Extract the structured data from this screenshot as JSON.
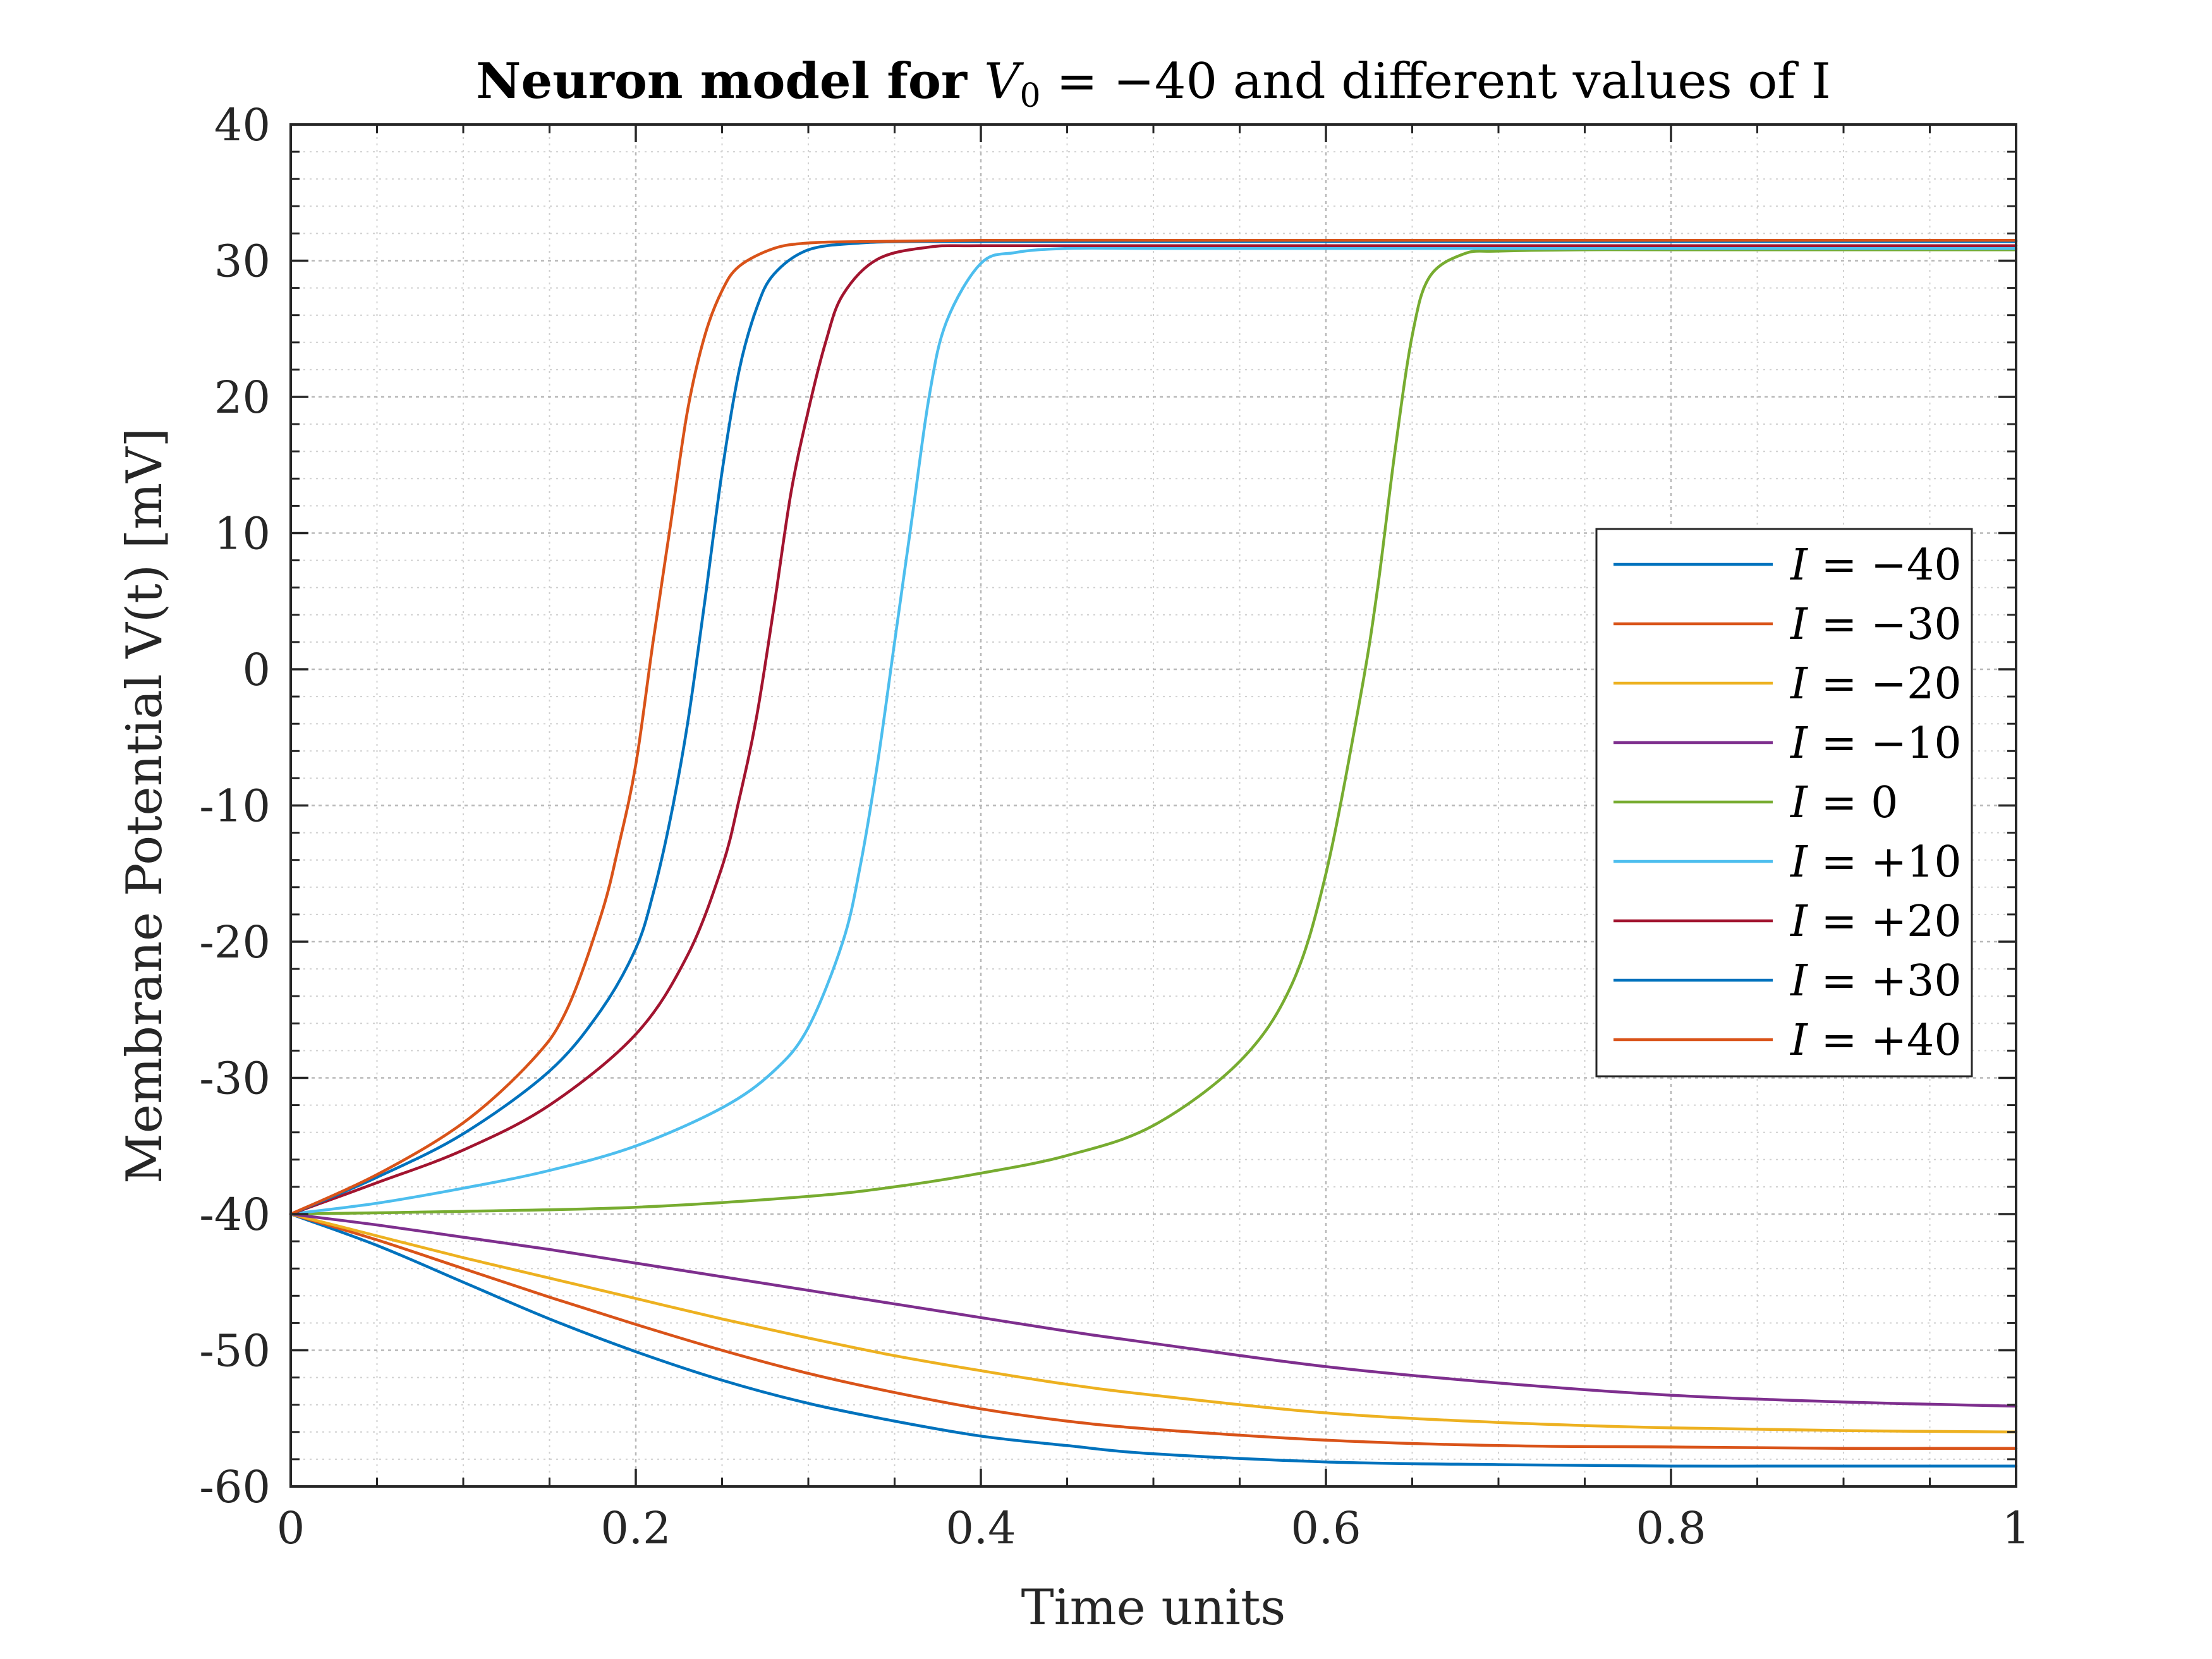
{
  "chart_data": {
    "type": "line",
    "title": "Neuron model for V0 = −40 and different values of I",
    "title_parts": {
      "before": "Neuron model for ",
      "symbol": "V",
      "subscript": "0",
      "after": " = −40 and different values of I"
    },
    "xlabel": "Time units",
    "ylabel": "Membrane Potential V(t) [mV]",
    "xlim": [
      0,
      1
    ],
    "ylim": [
      -60,
      40
    ],
    "x_ticks": [
      "0",
      "0.2",
      "0.4",
      "0.6",
      "0.8",
      "1"
    ],
    "x_tick_values": [
      0,
      0.2,
      0.4,
      0.6,
      0.8,
      1
    ],
    "y_ticks": [
      "40",
      "30",
      "20",
      "10",
      "0",
      "-10",
      "-20",
      "-30",
      "-40",
      "-50",
      "-60"
    ],
    "y_tick_values": [
      40,
      30,
      20,
      10,
      0,
      -10,
      -20,
      -30,
      -40,
      -50,
      -60
    ],
    "grid": true,
    "minor_grid": true,
    "legend_position": "right",
    "series": [
      {
        "name": "I = −40",
        "label_var": "I",
        "label_val": "= −40",
        "color": "#0072BD",
        "x": [
          0,
          0.05,
          0.1,
          0.15,
          0.2,
          0.25,
          0.3,
          0.35,
          0.4,
          0.45,
          0.5,
          0.6,
          0.7,
          0.8,
          0.9,
          1.0
        ],
        "y": [
          -40,
          -42.3,
          -45.0,
          -47.7,
          -50.1,
          -52.2,
          -53.9,
          -55.2,
          -56.3,
          -57.0,
          -57.6,
          -58.2,
          -58.4,
          -58.5,
          -58.5,
          -58.5
        ]
      },
      {
        "name": "I = −30",
        "label_var": "I",
        "label_val": "= −30",
        "color": "#D95319",
        "x": [
          0,
          0.05,
          0.1,
          0.15,
          0.2,
          0.25,
          0.3,
          0.35,
          0.4,
          0.45,
          0.5,
          0.6,
          0.7,
          0.8,
          0.9,
          1.0
        ],
        "y": [
          -40,
          -41.9,
          -44.0,
          -46.1,
          -48.1,
          -50.0,
          -51.7,
          -53.1,
          -54.3,
          -55.2,
          -55.8,
          -56.6,
          -57.0,
          -57.1,
          -57.2,
          -57.2
        ]
      },
      {
        "name": "I = −20",
        "label_var": "I",
        "label_val": "= −20",
        "color": "#EDB120",
        "x": [
          0,
          0.05,
          0.1,
          0.15,
          0.2,
          0.25,
          0.3,
          0.35,
          0.4,
          0.45,
          0.5,
          0.6,
          0.7,
          0.8,
          0.9,
          1.0
        ],
        "y": [
          -40,
          -41.6,
          -43.2,
          -44.7,
          -46.2,
          -47.7,
          -49.1,
          -50.4,
          -51.5,
          -52.5,
          -53.3,
          -54.6,
          -55.3,
          -55.7,
          -55.9,
          -56.0
        ]
      },
      {
        "name": "I = −10",
        "label_var": "I",
        "label_val": "= −10",
        "color": "#7E2F8E",
        "x": [
          0,
          0.05,
          0.1,
          0.15,
          0.2,
          0.25,
          0.3,
          0.35,
          0.4,
          0.45,
          0.5,
          0.6,
          0.7,
          0.8,
          0.9,
          1.0
        ],
        "y": [
          -40,
          -40.8,
          -41.7,
          -42.6,
          -43.6,
          -44.6,
          -45.6,
          -46.6,
          -47.6,
          -48.6,
          -49.5,
          -51.2,
          -52.4,
          -53.3,
          -53.8,
          -54.1
        ]
      },
      {
        "name": "I = 0",
        "label_var": "I",
        "label_val": "= 0",
        "color": "#77AC30",
        "x": [
          0,
          0.1,
          0.2,
          0.3,
          0.35,
          0.4,
          0.45,
          0.5,
          0.55,
          0.58,
          0.6,
          0.62,
          0.63,
          0.64,
          0.65,
          0.66,
          0.68,
          0.7,
          0.75,
          0.8,
          0.9,
          1.0
        ],
        "y": [
          -40,
          -39.8,
          -39.5,
          -38.7,
          -38.0,
          -37.0,
          -35.7,
          -33.5,
          -28.8,
          -23.2,
          -15.0,
          -2.0,
          6.0,
          16.0,
          24.5,
          28.8,
          30.5,
          30.7,
          30.8,
          30.8,
          30.8,
          30.8
        ]
      },
      {
        "name": "I = +10",
        "label_var": "I",
        "label_val": "= +10",
        "color": "#4DBEEE",
        "x": [
          0,
          0.05,
          0.1,
          0.15,
          0.2,
          0.25,
          0.28,
          0.3,
          0.32,
          0.33,
          0.34,
          0.35,
          0.36,
          0.37,
          0.38,
          0.4,
          0.42,
          0.45,
          0.5,
          0.6,
          0.8,
          1.0
        ],
        "y": [
          -40,
          -39.2,
          -38.1,
          -36.8,
          -35.0,
          -32.2,
          -29.5,
          -26.3,
          -20.0,
          -14.5,
          -7.0,
          2.0,
          11.0,
          20.0,
          25.5,
          29.8,
          30.6,
          30.9,
          30.9,
          30.9,
          30.9,
          30.9
        ]
      },
      {
        "name": "I = +20",
        "label_var": "I",
        "label_val": "= +20",
        "color": "#A2142F",
        "x": [
          0,
          0.05,
          0.1,
          0.15,
          0.2,
          0.23,
          0.25,
          0.26,
          0.27,
          0.28,
          0.29,
          0.3,
          0.31,
          0.32,
          0.34,
          0.37,
          0.4,
          0.5,
          0.6,
          0.8,
          1.0
        ],
        "y": [
          -40,
          -37.7,
          -35.3,
          -32.0,
          -26.8,
          -21.0,
          -14.5,
          -9.5,
          -3.5,
          4.5,
          13.0,
          19.0,
          24.0,
          27.5,
          30.1,
          31.0,
          31.1,
          31.1,
          31.1,
          31.1,
          31.1
        ]
      },
      {
        "name": "I = +30",
        "label_var": "I",
        "label_val": "= +30",
        "color": "#0072BD",
        "x": [
          0,
          0.05,
          0.1,
          0.15,
          0.18,
          0.2,
          0.21,
          0.22,
          0.23,
          0.24,
          0.25,
          0.26,
          0.27,
          0.28,
          0.3,
          0.33,
          0.36,
          0.4,
          0.5,
          0.6,
          0.8,
          1.0
        ],
        "y": [
          -40,
          -37.3,
          -34.1,
          -29.5,
          -25.0,
          -20.5,
          -16.5,
          -11.0,
          -4.0,
          5.0,
          14.5,
          22.0,
          26.5,
          29.0,
          30.8,
          31.3,
          31.4,
          31.4,
          31.4,
          31.4,
          31.4,
          31.4
        ]
      },
      {
        "name": "I = +40",
        "label_var": "I",
        "label_val": "= +40",
        "color": "#D95319",
        "x": [
          0,
          0.05,
          0.1,
          0.14,
          0.16,
          0.18,
          0.19,
          0.2,
          0.21,
          0.22,
          0.23,
          0.24,
          0.25,
          0.26,
          0.28,
          0.3,
          0.33,
          0.4,
          0.5,
          0.6,
          0.8,
          1.0
        ],
        "y": [
          -40,
          -37.1,
          -33.3,
          -28.7,
          -25.0,
          -18.0,
          -13.0,
          -7.0,
          2.0,
          10.5,
          19.0,
          24.5,
          27.8,
          29.6,
          30.9,
          31.3,
          31.4,
          31.5,
          31.5,
          31.5,
          31.5,
          31.5
        ]
      }
    ]
  }
}
